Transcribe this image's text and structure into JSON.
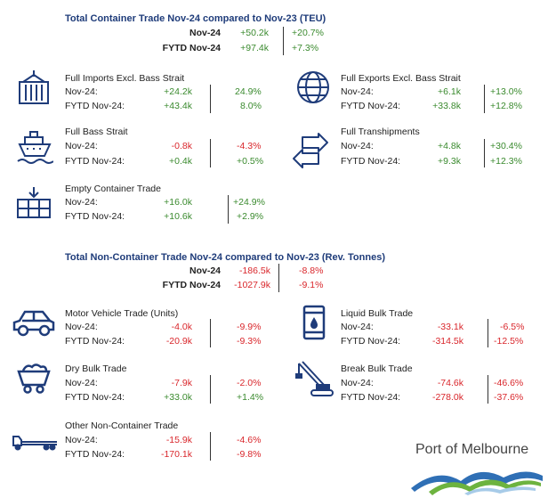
{
  "container_title": "Total Container Trade Nov-24 compared to Nov-23 (TEU)",
  "container_summary": [
    {
      "label": "Nov-24",
      "value": "+50.2k",
      "pct": "+20.7%"
    },
    {
      "label": "FYTD Nov-24",
      "value": "+97.4k",
      "pct": "+7.3%"
    }
  ],
  "imports": {
    "title": "Full Imports Excl. Bass Strait",
    "icon": "cargo-container-icon",
    "rows": [
      {
        "label": "Nov-24:",
        "value": "+24.2k",
        "pct": "24.9%"
      },
      {
        "label": "FYTD Nov-24:",
        "value": "+43.4k",
        "pct": "8.0%"
      }
    ]
  },
  "exports": {
    "title": "Full Exports Excl. Bass Strait",
    "icon": "globe-icon",
    "rows": [
      {
        "label": "Nov-24:",
        "value": "+6.1k",
        "pct": "+13.0%"
      },
      {
        "label": "FYTD Nov-24:",
        "value": "+33.8k",
        "pct": "+12.8%"
      }
    ]
  },
  "bass": {
    "title": "Full Bass Strait",
    "icon": "ship-icon",
    "rows": [
      {
        "label": "Nov-24:",
        "value": "-0.8k",
        "pct": "-4.3%"
      },
      {
        "label": "FYTD Nov-24:",
        "value": "+0.4k",
        "pct": "+0.5%"
      }
    ]
  },
  "tranship": {
    "title": "Full Transhipments",
    "icon": "exchange-arrows-icon",
    "rows": [
      {
        "label": "Nov-24:",
        "value": "+4.8k",
        "pct": "+30.4%"
      },
      {
        "label": "FYTD Nov-24:",
        "value": "+9.3k",
        "pct": "+12.3%"
      }
    ]
  },
  "empty": {
    "title": "Empty Container Trade",
    "icon": "container-stack-icon",
    "rows": [
      {
        "label": "Nov-24:",
        "value": "+16.0k",
        "pct": "+24.9%"
      },
      {
        "label": "FYTD Nov-24:",
        "value": "+10.6k",
        "pct": "+2.9%"
      }
    ]
  },
  "noncontainer_title": "Total Non-Container Trade Nov-24 compared to Nov-23 (Rev. Tonnes)",
  "noncontainer_summary": [
    {
      "label": "Nov-24",
      "value": "-186.5k",
      "pct": "-8.8%"
    },
    {
      "label": "FYTD Nov-24",
      "value": "-1027.9k",
      "pct": "-9.1%"
    }
  ],
  "motor": {
    "title": "Motor Vehicle Trade (Units)",
    "icon": "car-icon",
    "rows": [
      {
        "label": "Nov-24:",
        "value": "-4.0k",
        "pct": "-9.9%"
      },
      {
        "label": "FYTD Nov-24:",
        "value": "-20.9k",
        "pct": "-9.3%"
      }
    ]
  },
  "liquid": {
    "title": "Liquid Bulk Trade",
    "icon": "barrel-icon",
    "rows": [
      {
        "label": "Nov-24:",
        "value": "-33.1k",
        "pct": "-6.5%"
      },
      {
        "label": "FYTD Nov-24:",
        "value": "-314.5k",
        "pct": "-12.5%"
      }
    ]
  },
  "dry": {
    "title": "Dry Bulk Trade",
    "icon": "mine-cart-icon",
    "rows": [
      {
        "label": "Nov-24:",
        "value": "-7.9k",
        "pct": "-2.0%"
      },
      {
        "label": "FYTD Nov-24:",
        "value": "+33.0k",
        "pct": "+1.4%"
      }
    ]
  },
  "breakbulk": {
    "title": "Break Bulk Trade",
    "icon": "crane-icon",
    "rows": [
      {
        "label": "Nov-24:",
        "value": "-74.6k",
        "pct": "-46.6%"
      },
      {
        "label": "FYTD Nov-24:",
        "value": "-278.0k",
        "pct": "-37.6%"
      }
    ]
  },
  "other": {
    "title": "Other Non-Container Trade",
    "icon": "flatbed-truck-icon",
    "rows": [
      {
        "label": "Nov-24:",
        "value": "-15.9k",
        "pct": "-4.6%"
      },
      {
        "label": "FYTD Nov-24:",
        "value": "-170.1k",
        "pct": "-9.8%"
      }
    ]
  },
  "logo": {
    "text": "Port of Melbourne"
  },
  "colors": {
    "title": "#1f3c7a",
    "positive": "#3a8a2e",
    "negative": "#d9262b",
    "icon": "#1f3c7a"
  }
}
